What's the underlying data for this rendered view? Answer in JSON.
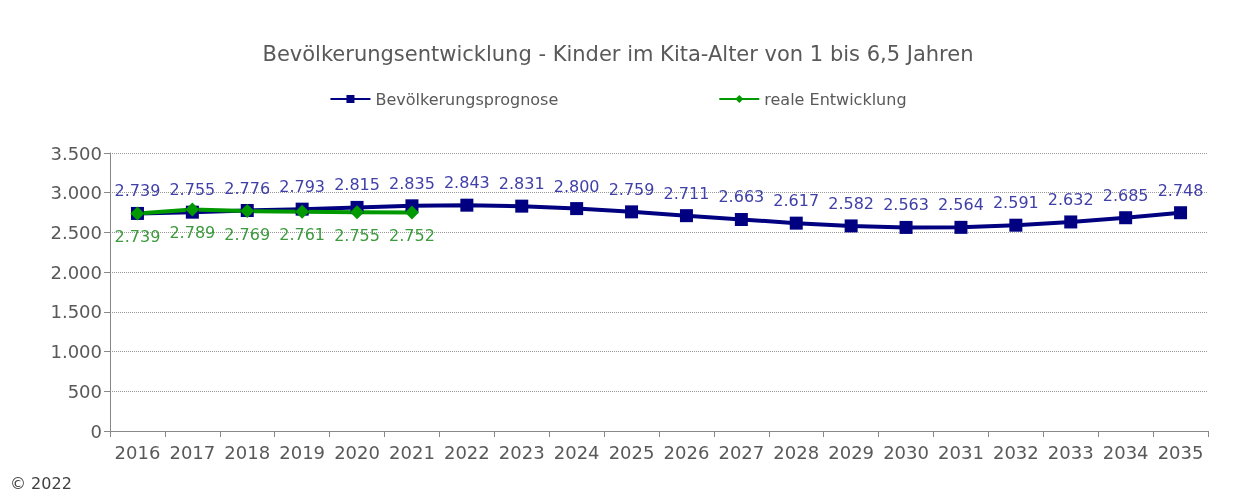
{
  "chart_data": {
    "type": "line",
    "title": "Bevölkerungsentwicklung - Kinder im Kita-Alter von 1 bis 6,5 Jahren",
    "categories": [
      "2016",
      "2017",
      "2018",
      "2019",
      "2020",
      "2021",
      "2022",
      "2023",
      "2024",
      "2025",
      "2026",
      "2027",
      "2028",
      "2029",
      "2030",
      "2031",
      "2032",
      "2033",
      "2034",
      "2035"
    ],
    "series": [
      {
        "name": "Bevölkerungsprognose",
        "color": "#000080",
        "marker": "square",
        "values": [
          2739,
          2755,
          2776,
          2793,
          2815,
          2835,
          2843,
          2831,
          2800,
          2759,
          2711,
          2663,
          2617,
          2582,
          2563,
          2564,
          2591,
          2632,
          2685,
          2748
        ],
        "value_labels": [
          "2.739",
          "2.755",
          "2.776",
          "2.793",
          "2.815",
          "2.835",
          "2.843",
          "2.831",
          "2.800",
          "2.759",
          "2.711",
          "2.663",
          "2.617",
          "2.582",
          "2.563",
          "2.564",
          "2.591",
          "2.632",
          "2.685",
          "2.748"
        ]
      },
      {
        "name": "reale Entwicklung",
        "color": "#009900",
        "marker": "diamond",
        "values": [
          2739,
          2789,
          2769,
          2761,
          2755,
          2752,
          null,
          null,
          null,
          null,
          null,
          null,
          null,
          null,
          null,
          null,
          null,
          null,
          null,
          null
        ],
        "value_labels": [
          "2.739",
          "2.789",
          "2.769",
          "2.761",
          "2.755",
          "2.752",
          null,
          null,
          null,
          null,
          null,
          null,
          null,
          null,
          null,
          null,
          null,
          null,
          null,
          null
        ]
      }
    ],
    "ylim": [
      0,
      3500
    ],
    "yticks": [
      0,
      500,
      {
        "value": 1000,
        "label": "1.000"
      },
      {
        "value": 1500,
        "label": "1.500"
      },
      {
        "value": 2000,
        "label": "2.000"
      },
      {
        "value": 2500,
        "label": "2.500"
      },
      {
        "value": 3000,
        "label": "3.000"
      },
      {
        "value": 3500,
        "label": "3.500"
      }
    ],
    "grid": "y",
    "legend": "top",
    "line_style": "solid",
    "annotations": [
      "© 2022"
    ]
  }
}
